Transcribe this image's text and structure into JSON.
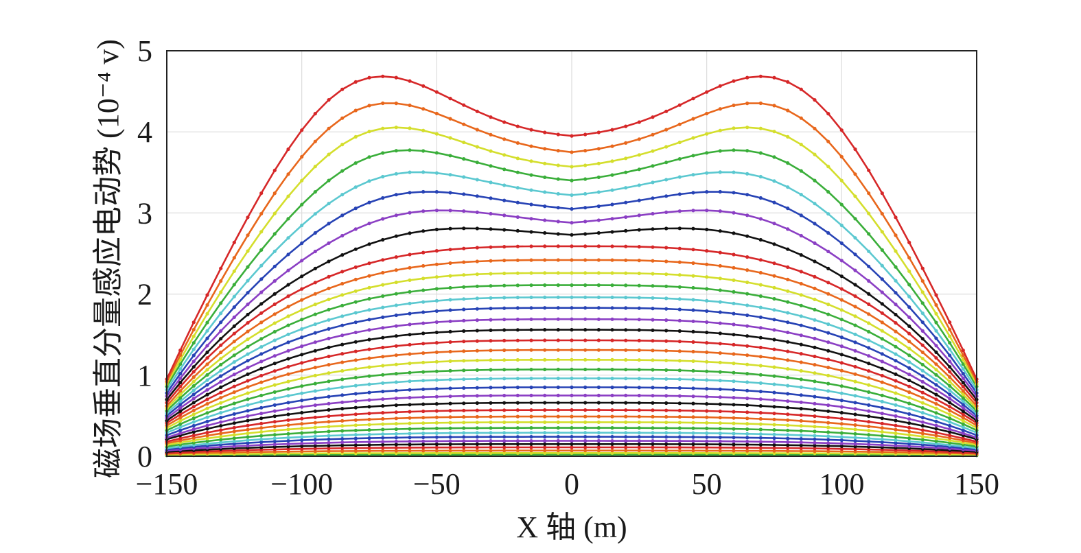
{
  "chart_data": {
    "type": "line",
    "xlabel": "X 轴 (m)",
    "ylabel": "磁场垂直分量感应电动势 (10⁻⁴ v)",
    "xlim": [
      -150,
      150
    ],
    "ylim": [
      0,
      5
    ],
    "x_ticks": [
      -150,
      -100,
      -50,
      0,
      50,
      100,
      150
    ],
    "x_tick_labels": [
      "−150",
      "−100",
      "−50",
      "0",
      "50",
      "100",
      "150"
    ],
    "y_ticks": [
      0,
      1,
      2,
      3,
      4,
      5
    ],
    "y_tick_labels": [
      "0",
      "1",
      "2",
      "3",
      "4",
      "5"
    ],
    "grid": true,
    "legend": "none",
    "marker": "dot",
    "x_step": 5,
    "curve_count": 36,
    "color_cycle": [
      "#d62728",
      "#e8671c",
      "#d4de2c",
      "#3aae3a",
      "#5bc8d0",
      "#2743b5",
      "#8b3fc4",
      "#111111"
    ],
    "series": [
      {
        "edge": 0.95,
        "center": 3.95,
        "peak": 4.67,
        "peak_x": 82
      },
      {
        "edge": 0.92,
        "center": 3.75,
        "peak": 4.33,
        "peak_x": 80
      },
      {
        "edge": 0.89,
        "center": 3.57,
        "peak": 4.02,
        "peak_x": 78
      },
      {
        "edge": 0.86,
        "center": 3.4,
        "peak": 3.74,
        "peak_x": 74
      },
      {
        "edge": 0.82,
        "center": 3.22,
        "peak": 3.47,
        "peak_x": 71
      },
      {
        "edge": 0.78,
        "center": 3.05,
        "peak": 3.23,
        "peak_x": 68
      },
      {
        "edge": 0.74,
        "center": 2.88,
        "peak": 3.01,
        "peak_x": 63
      },
      {
        "edge": 0.7,
        "center": 2.73,
        "peak": 2.8,
        "peak_x": 55
      },
      {
        "edge": 0.66,
        "center": 2.59
      },
      {
        "edge": 0.62,
        "center": 2.42
      },
      {
        "edge": 0.59,
        "center": 2.26
      },
      {
        "edge": 0.56,
        "center": 2.11
      },
      {
        "edge": 0.53,
        "center": 1.96
      },
      {
        "edge": 0.5,
        "center": 1.83
      },
      {
        "edge": 0.47,
        "center": 1.69
      },
      {
        "edge": 0.44,
        "center": 1.56
      },
      {
        "edge": 0.41,
        "center": 1.43
      },
      {
        "edge": 0.38,
        "center": 1.31
      },
      {
        "edge": 0.35,
        "center": 1.19
      },
      {
        "edge": 0.32,
        "center": 1.07
      },
      {
        "edge": 0.29,
        "center": 0.96
      },
      {
        "edge": 0.26,
        "center": 0.85
      },
      {
        "edge": 0.23,
        "center": 0.75
      },
      {
        "edge": 0.21,
        "center": 0.66
      },
      {
        "edge": 0.18,
        "center": 0.57
      },
      {
        "edge": 0.16,
        "center": 0.49
      },
      {
        "edge": 0.14,
        "center": 0.42
      },
      {
        "edge": 0.12,
        "center": 0.35
      },
      {
        "edge": 0.1,
        "center": 0.29
      },
      {
        "edge": 0.085,
        "center": 0.24
      },
      {
        "edge": 0.07,
        "center": 0.19
      },
      {
        "edge": 0.055,
        "center": 0.15
      },
      {
        "edge": 0.04,
        "center": 0.11
      },
      {
        "edge": 0.03,
        "center": 0.07
      },
      {
        "edge": 0.02,
        "center": 0.04
      },
      {
        "edge": 0.01,
        "center": 0.02
      }
    ]
  }
}
